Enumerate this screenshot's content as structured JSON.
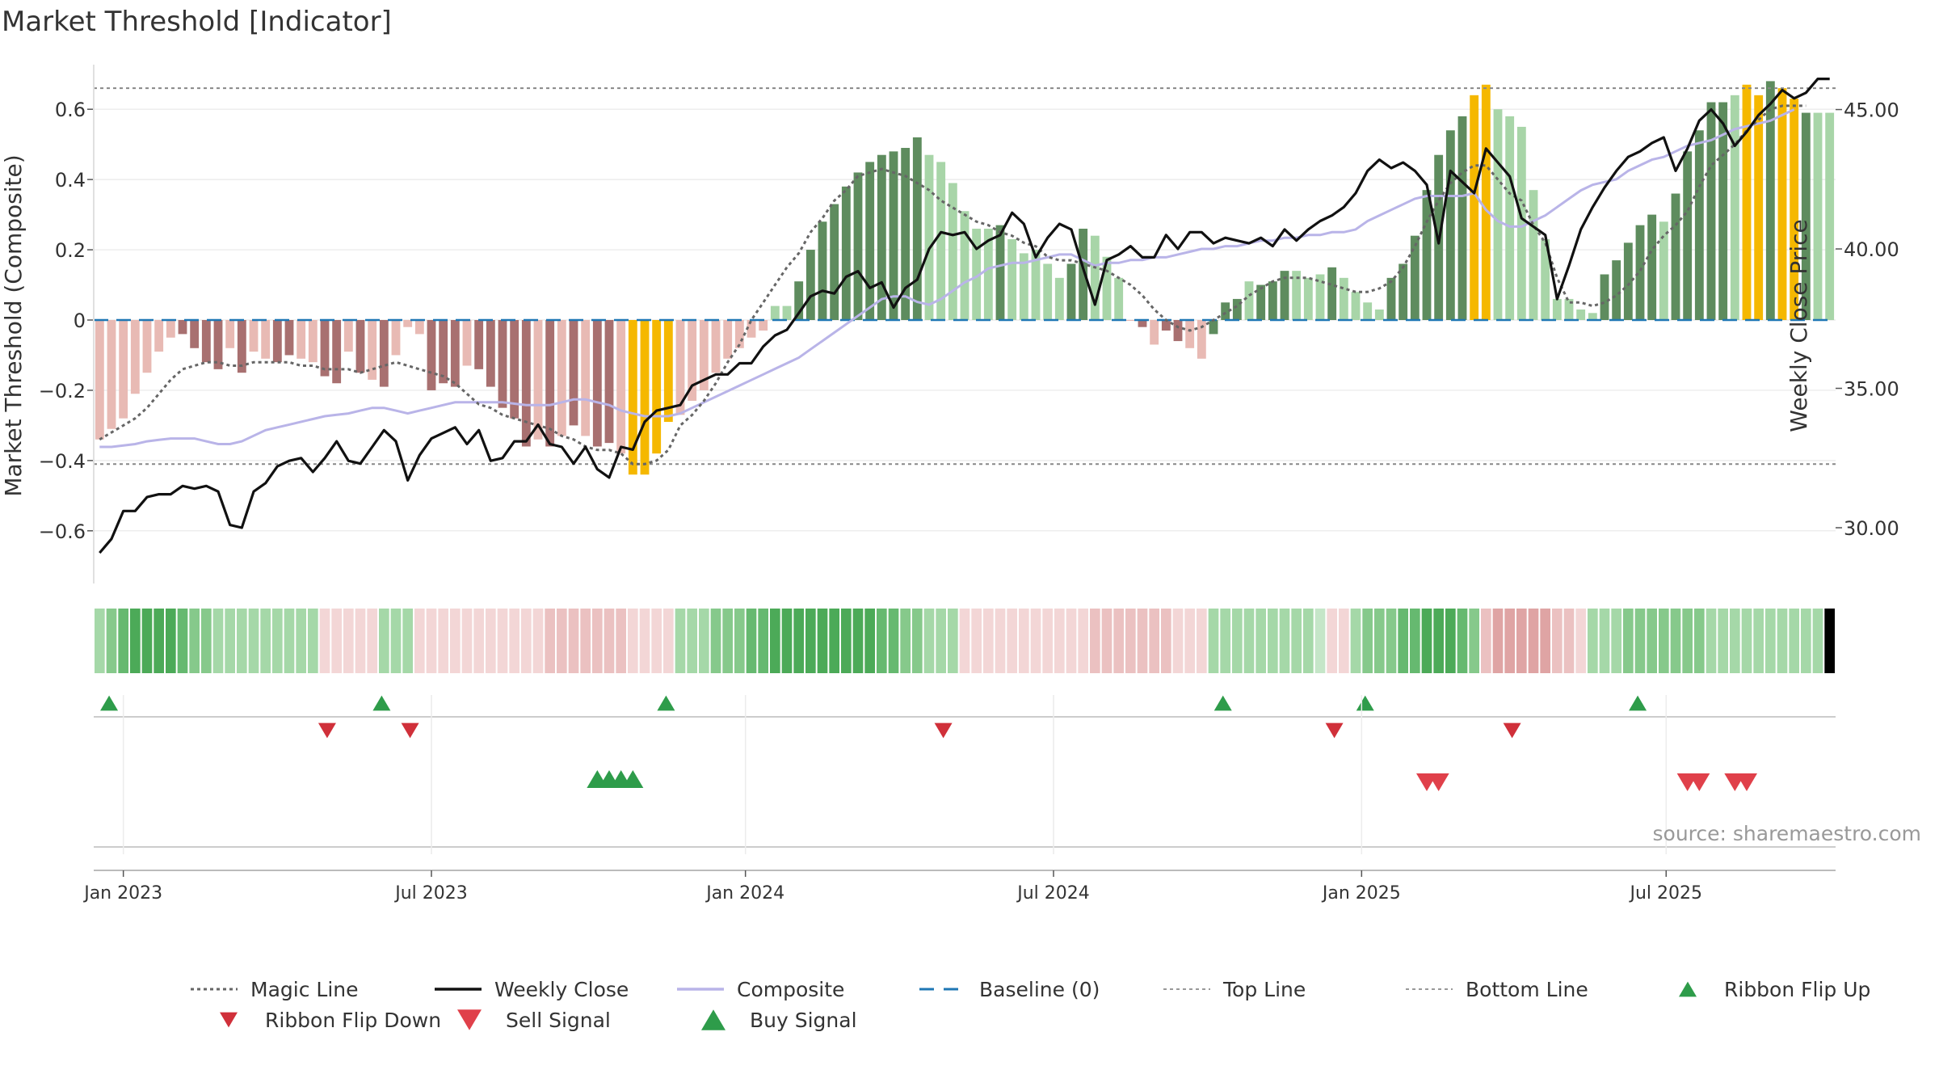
{
  "chart_data": {
    "type": "bar",
    "title": "Market Threshold [Indicator]",
    "ylabel": "Market Threshold (Composite)",
    "y2label": "Weekly Close Price",
    "source": "source: sharemaestro.com",
    "grid": true,
    "legend_position": "bottom",
    "ylim": [
      -0.75,
      0.75
    ],
    "y2lim": [
      28.0,
      46.9
    ],
    "yticks": [
      {
        "value": 0.6,
        "label": "0.6"
      },
      {
        "value": 0.4,
        "label": "0.4"
      },
      {
        "value": 0.2,
        "label": "0.2"
      },
      {
        "value": 0.0,
        "label": "0"
      },
      {
        "value": -0.2,
        "label": "−0.2"
      },
      {
        "value": -0.4,
        "label": "−0.4"
      },
      {
        "value": -0.6,
        "label": "−0.6"
      }
    ],
    "y2ticks": [
      {
        "value": 45,
        "label": "45.00"
      },
      {
        "value": 40,
        "label": "40.00"
      },
      {
        "value": 35,
        "label": "35.00"
      },
      {
        "value": 30,
        "label": "30.00"
      }
    ],
    "xticks": [
      {
        "week": 2,
        "label": "Jan 2023"
      },
      {
        "week": 28,
        "label": "Jul 2023"
      },
      {
        "week": 54.5,
        "label": "Jan 2024"
      },
      {
        "week": 80.5,
        "label": "Jul 2024"
      },
      {
        "week": 106.5,
        "label": "Jan 2025"
      },
      {
        "week": 132.2,
        "label": "Jul 2025"
      }
    ],
    "top_line": 0.66,
    "bottom_line": -0.41,
    "colors": {
      "strong_pos": "#5e8c5e",
      "weak_pos": "#a8d5a8",
      "strong_neg": "#a87070",
      "weak_neg": "#e8bab4",
      "extreme": "#f5b800",
      "weekly_close": "#111111",
      "magic_line": "#666666",
      "composite": "#b9b4e8",
      "baseline": "#1f77b4",
      "buy": "#2e9c4a",
      "sell": "#d0303a"
    },
    "composite": [
      -0.34,
      -0.31,
      -0.28,
      -0.21,
      -0.15,
      -0.09,
      -0.05,
      -0.04,
      -0.08,
      -0.12,
      -0.14,
      -0.08,
      -0.15,
      -0.09,
      -0.11,
      -0.12,
      -0.1,
      -0.11,
      -0.12,
      -0.16,
      -0.18,
      -0.09,
      -0.15,
      -0.17,
      -0.19,
      -0.1,
      -0.02,
      -0.04,
      -0.2,
      -0.18,
      -0.19,
      -0.13,
      -0.14,
      -0.19,
      -0.25,
      -0.28,
      -0.36,
      -0.34,
      -0.36,
      -0.33,
      -0.3,
      -0.33,
      -0.36,
      -0.35,
      -0.38,
      -0.44,
      -0.44,
      -0.38,
      -0.29,
      -0.27,
      -0.23,
      -0.2,
      -0.15,
      -0.11,
      -0.08,
      -0.05,
      -0.03,
      0.04,
      0.04,
      0.11,
      0.2,
      0.28,
      0.33,
      0.38,
      0.42,
      0.45,
      0.47,
      0.48,
      0.49,
      0.52,
      0.47,
      0.45,
      0.39,
      0.31,
      0.26,
      0.26,
      0.27,
      0.23,
      0.19,
      0.2,
      0.16,
      0.12,
      0.16,
      0.26,
      0.24,
      0.18,
      0.12,
      0.0,
      -0.02,
      -0.07,
      -0.03,
      -0.06,
      -0.08,
      -0.11,
      -0.04,
      0.05,
      0.06,
      0.11,
      0.1,
      0.11,
      0.14,
      0.14,
      0.12,
      0.13,
      0.15,
      0.12,
      0.08,
      0.05,
      0.03,
      0.12,
      0.16,
      0.24,
      0.37,
      0.47,
      0.54,
      0.58,
      0.64,
      0.67,
      0.6,
      0.58,
      0.55,
      0.37,
      0.23,
      0.06,
      0.06,
      0.03,
      0.02,
      0.13,
      0.17,
      0.22,
      0.27,
      0.3,
      0.28,
      0.36,
      0.48,
      0.54,
      0.62,
      0.62,
      0.64,
      0.67,
      0.64,
      0.68,
      0.66,
      0.63,
      0.59,
      0.59,
      0.59
    ],
    "bar_class": [
      "weak_neg",
      "weak_neg",
      "weak_neg",
      "weak_neg",
      "weak_neg",
      "weak_neg",
      "weak_neg",
      "strong_neg",
      "strong_neg",
      "strong_neg",
      "strong_neg",
      "weak_neg",
      "strong_neg",
      "weak_neg",
      "weak_neg",
      "strong_neg",
      "strong_neg",
      "weak_neg",
      "weak_neg",
      "strong_neg",
      "strong_neg",
      "weak_neg",
      "strong_neg",
      "weak_neg",
      "strong_neg",
      "weak_neg",
      "weak_neg",
      "weak_neg",
      "strong_neg",
      "strong_neg",
      "strong_neg",
      "weak_neg",
      "strong_neg",
      "strong_neg",
      "strong_neg",
      "strong_neg",
      "strong_neg",
      "weak_neg",
      "strong_neg",
      "weak_neg",
      "strong_neg",
      "weak_neg",
      "strong_neg",
      "strong_neg",
      "weak_neg",
      "extreme",
      "extreme",
      "extreme",
      "extreme",
      "weak_neg",
      "weak_neg",
      "weak_neg",
      "weak_neg",
      "weak_neg",
      "weak_neg",
      "weak_neg",
      "weak_neg",
      "weak_pos",
      "weak_pos",
      "strong_pos",
      "strong_pos",
      "strong_pos",
      "strong_pos",
      "strong_pos",
      "strong_pos",
      "strong_pos",
      "strong_pos",
      "strong_pos",
      "strong_pos",
      "strong_pos",
      "weak_pos",
      "weak_pos",
      "weak_pos",
      "weak_pos",
      "weak_pos",
      "weak_pos",
      "strong_pos",
      "weak_pos",
      "weak_pos",
      "weak_pos",
      "weak_pos",
      "weak_pos",
      "strong_pos",
      "strong_pos",
      "weak_pos",
      "weak_pos",
      "weak_pos",
      "weak_neg",
      "strong_neg",
      "weak_neg",
      "strong_neg",
      "strong_neg",
      "weak_neg",
      "weak_neg",
      "strong_pos",
      "strong_pos",
      "strong_pos",
      "weak_pos",
      "strong_pos",
      "strong_pos",
      "strong_pos",
      "weak_pos",
      "weak_pos",
      "weak_pos",
      "strong_pos",
      "weak_pos",
      "weak_pos",
      "weak_pos",
      "weak_pos",
      "strong_pos",
      "strong_pos",
      "strong_pos",
      "strong_pos",
      "strong_pos",
      "strong_pos",
      "strong_pos",
      "extreme",
      "extreme",
      "weak_pos",
      "weak_pos",
      "weak_pos",
      "weak_pos",
      "weak_pos",
      "weak_pos",
      "weak_pos",
      "weak_pos",
      "weak_pos",
      "strong_pos",
      "strong_pos",
      "strong_pos",
      "strong_pos",
      "strong_pos",
      "weak_pos",
      "strong_pos",
      "strong_pos",
      "strong_pos",
      "strong_pos",
      "strong_pos",
      "weak_pos",
      "extreme",
      "extreme",
      "strong_pos",
      "extreme",
      "extreme",
      "strong_pos",
      "weak_pos",
      "weak_pos",
      "strong_pos"
    ],
    "weekly_close": [
      29.1,
      29.6,
      30.6,
      30.6,
      31.1,
      31.2,
      31.2,
      31.5,
      31.4,
      31.5,
      31.3,
      30.1,
      30.0,
      31.3,
      31.6,
      32.2,
      32.4,
      32.5,
      32.0,
      32.5,
      33.1,
      32.4,
      32.3,
      32.9,
      33.5,
      33.1,
      31.7,
      32.6,
      33.2,
      33.4,
      33.6,
      33.0,
      33.5,
      32.4,
      32.5,
      33.1,
      33.1,
      33.7,
      33.0,
      32.9,
      32.3,
      32.9,
      32.1,
      31.8,
      32.9,
      32.8,
      33.8,
      34.2,
      34.3,
      34.4,
      35.1,
      35.3,
      35.5,
      35.5,
      35.9,
      35.9,
      36.5,
      36.9,
      37.1,
      37.7,
      38.3,
      38.5,
      38.4,
      39.0,
      39.2,
      38.6,
      38.8,
      37.9,
      38.6,
      38.9,
      40.0,
      40.6,
      40.5,
      40.6,
      40.0,
      40.3,
      40.5,
      41.3,
      40.9,
      39.7,
      40.4,
      40.9,
      40.7,
      39.3,
      38.0,
      39.6,
      39.8,
      40.1,
      39.7,
      39.7,
      40.5,
      40.0,
      40.6,
      40.6,
      40.2,
      40.4,
      40.3,
      40.2,
      40.4,
      40.1,
      40.7,
      40.3,
      40.7,
      41.0,
      41.2,
      41.5,
      42.0,
      42.8,
      43.2,
      42.9,
      43.1,
      42.8,
      42.3,
      40.2,
      42.8,
      42.4,
      42.0,
      43.6,
      43.1,
      42.6,
      41.1,
      40.8,
      40.5,
      38.2,
      39.4,
      40.7,
      41.5,
      42.2,
      42.8,
      43.3,
      43.5,
      43.8,
      44.0,
      42.8,
      43.6,
      44.6,
      45.0,
      44.5,
      43.7,
      44.2,
      44.8,
      45.2,
      45.7,
      45.4,
      45.6,
      46.1,
      46.1
    ],
    "magic_line": [
      -0.34,
      -0.32,
      -0.3,
      -0.28,
      -0.25,
      -0.21,
      -0.17,
      -0.14,
      -0.13,
      -0.12,
      -0.12,
      -0.13,
      -0.13,
      -0.12,
      -0.12,
      -0.12,
      -0.12,
      -0.13,
      -0.13,
      -0.14,
      -0.14,
      -0.14,
      -0.15,
      -0.14,
      -0.13,
      -0.12,
      -0.13,
      -0.14,
      -0.15,
      -0.16,
      -0.18,
      -0.21,
      -0.24,
      -0.25,
      -0.27,
      -0.28,
      -0.29,
      -0.3,
      -0.31,
      -0.33,
      -0.34,
      -0.36,
      -0.37,
      -0.37,
      -0.38,
      -0.41,
      -0.41,
      -0.4,
      -0.37,
      -0.3,
      -0.27,
      -0.23,
      -0.18,
      -0.12,
      -0.07,
      0.0,
      0.05,
      0.1,
      0.15,
      0.19,
      0.25,
      0.29,
      0.34,
      0.37,
      0.41,
      0.42,
      0.43,
      0.42,
      0.41,
      0.39,
      0.37,
      0.34,
      0.32,
      0.3,
      0.28,
      0.27,
      0.25,
      0.24,
      0.22,
      0.21,
      0.18,
      0.17,
      0.17,
      0.16,
      0.15,
      0.14,
      0.12,
      0.1,
      0.07,
      0.03,
      0.0,
      -0.02,
      -0.03,
      -0.02,
      0.0,
      0.02,
      0.04,
      0.07,
      0.09,
      0.11,
      0.12,
      0.12,
      0.12,
      0.11,
      0.1,
      0.09,
      0.08,
      0.08,
      0.09,
      0.11,
      0.15,
      0.21,
      0.28,
      0.34,
      0.39,
      0.42,
      0.44,
      0.44,
      0.4,
      0.36,
      0.34,
      0.27,
      0.22,
      0.12,
      0.05,
      0.05,
      0.04,
      0.05,
      0.07,
      0.1,
      0.14,
      0.2,
      0.24,
      0.27,
      0.31,
      0.38,
      0.44,
      0.47,
      0.5,
      0.54,
      0.57,
      0.6,
      0.61,
      0.61,
      0.61
    ],
    "composite_line": [
      32.9,
      32.9,
      32.95,
      33.0,
      33.1,
      33.15,
      33.2,
      33.2,
      33.2,
      33.1,
      33.0,
      33.0,
      33.1,
      33.3,
      33.5,
      33.6,
      33.7,
      33.8,
      33.9,
      34.0,
      34.05,
      34.1,
      34.2,
      34.3,
      34.3,
      34.2,
      34.1,
      34.2,
      34.3,
      34.4,
      34.5,
      34.5,
      34.5,
      34.5,
      34.5,
      34.45,
      34.4,
      34.4,
      34.4,
      34.5,
      34.6,
      34.6,
      34.5,
      34.4,
      34.2,
      34.1,
      34.0,
      34.0,
      34.0,
      34.1,
      34.3,
      34.5,
      34.7,
      34.9,
      35.1,
      35.3,
      35.5,
      35.7,
      35.9,
      36.1,
      36.4,
      36.7,
      37.0,
      37.3,
      37.6,
      37.9,
      38.2,
      38.3,
      38.3,
      38.1,
      38.0,
      38.2,
      38.5,
      38.8,
      39.0,
      39.3,
      39.4,
      39.5,
      39.5,
      39.6,
      39.7,
      39.8,
      39.8,
      39.6,
      39.4,
      39.5,
      39.5,
      39.6,
      39.6,
      39.7,
      39.7,
      39.8,
      39.9,
      40.0,
      40.0,
      40.1,
      40.1,
      40.2,
      40.3,
      40.3,
      40.4,
      40.4,
      40.5,
      40.5,
      40.6,
      40.6,
      40.7,
      41.0,
      41.2,
      41.4,
      41.6,
      41.8,
      41.9,
      41.9,
      41.9,
      41.9,
      42.0,
      41.4,
      41.0,
      40.8,
      40.8,
      41.0,
      41.2,
      41.5,
      41.8,
      42.1,
      42.3,
      42.4,
      42.5,
      42.8,
      43.0,
      43.2,
      43.3,
      43.5,
      43.7,
      43.8,
      43.9,
      44.1,
      44.3,
      44.4,
      44.5,
      44.6,
      44.8,
      45.0
    ],
    "ribbon_green": [
      1,
      2,
      3,
      4,
      4,
      4,
      4,
      3,
      2,
      2,
      1,
      1,
      1,
      1,
      1,
      1,
      1,
      1,
      1,
      0,
      0,
      0,
      0,
      0,
      1,
      1,
      1,
      0,
      0,
      0,
      0,
      0,
      0,
      0,
      0,
      0,
      0,
      0,
      0,
      0,
      0,
      0,
      0,
      0,
      0,
      0,
      0,
      0,
      0,
      1,
      1,
      1,
      2,
      2,
      2,
      3,
      3,
      4,
      4,
      4,
      4,
      4,
      4,
      4,
      4,
      4,
      3,
      3,
      2,
      2,
      1,
      1,
      1,
      0,
      0,
      0,
      0,
      0,
      0,
      0,
      0,
      0,
      0,
      0,
      0,
      0,
      0,
      0,
      0,
      0,
      0,
      0,
      0,
      1,
      1,
      1,
      1,
      1,
      1,
      1,
      1,
      1,
      1,
      0,
      0,
      1,
      1,
      2,
      2,
      2,
      3,
      3,
      4,
      4,
      4,
      3,
      2,
      0,
      0,
      0,
      0,
      0,
      0,
      0,
      0,
      0,
      1,
      1,
      1,
      2,
      2,
      2,
      2,
      2,
      2,
      2,
      1,
      1,
      1,
      1,
      1,
      1,
      1,
      1,
      1,
      1
    ],
    "ribbon_red": [
      0,
      0,
      0,
      0,
      0,
      0,
      0,
      0,
      0,
      0,
      0,
      0,
      0,
      0,
      0,
      0,
      0,
      0,
      0,
      1,
      1,
      1,
      1,
      1,
      0,
      0,
      0,
      1,
      1,
      1,
      1,
      1,
      1,
      1,
      1,
      1,
      1,
      1,
      2,
      2,
      2,
      2,
      2,
      2,
      2,
      1,
      1,
      1,
      1,
      0,
      0,
      0,
      0,
      0,
      0,
      0,
      0,
      0,
      0,
      0,
      0,
      0,
      0,
      0,
      0,
      0,
      0,
      0,
      0,
      0,
      0,
      0,
      0,
      1,
      1,
      1,
      1,
      1,
      1,
      1,
      1,
      1,
      1,
      1,
      2,
      2,
      2,
      2,
      2,
      2,
      2,
      1,
      1,
      1,
      0,
      0,
      0,
      0,
      0,
      0,
      0,
      0,
      0,
      0,
      1,
      1,
      0,
      0,
      0,
      0,
      0,
      0,
      0,
      0,
      0,
      0,
      0,
      2,
      3,
      3,
      3,
      3,
      3,
      2,
      2,
      1,
      0,
      0,
      0,
      0,
      0,
      0,
      0,
      0,
      0,
      0,
      0,
      0,
      0,
      0,
      0,
      0,
      0,
      0,
      0,
      0
    ],
    "ribbon_flip_up_weeks": [
      0.8,
      23.8,
      47.8,
      94.8,
      106.8,
      129.8
    ],
    "ribbon_flip_down_weeks": [
      19.2,
      26.2,
      71.2,
      104.2,
      119.2
    ],
    "buy_signal_weeks": [
      42,
      43,
      44,
      45
    ],
    "sell_signal_weeks": [
      112,
      113,
      134,
      135,
      138,
      139
    ],
    "legend": [
      {
        "label": "Magic Line",
        "kind": "dotted",
        "color": "#666666"
      },
      {
        "label": "Weekly Close",
        "kind": "solid",
        "color": "#111111"
      },
      {
        "label": "Composite",
        "kind": "solid",
        "color": "#b9b4e8"
      },
      {
        "label": "Baseline (0)",
        "kind": "dashed",
        "color": "#1f77b4"
      },
      {
        "label": "Top Line",
        "kind": "dashed-thin",
        "color": "#999999"
      },
      {
        "label": "Bottom Line",
        "kind": "dashed-thin",
        "color": "#999999"
      },
      {
        "label": "Ribbon Flip Up",
        "kind": "tri-up",
        "color": "#2e9c4a"
      },
      {
        "label": "Ribbon Flip Down",
        "kind": "tri-down",
        "color": "#d0303a"
      },
      {
        "label": "Sell Signal",
        "kind": "tri-down-big",
        "color": "#e0404a"
      },
      {
        "label": "Buy Signal",
        "kind": "tri-up-big",
        "color": "#2e9c4a"
      }
    ]
  }
}
